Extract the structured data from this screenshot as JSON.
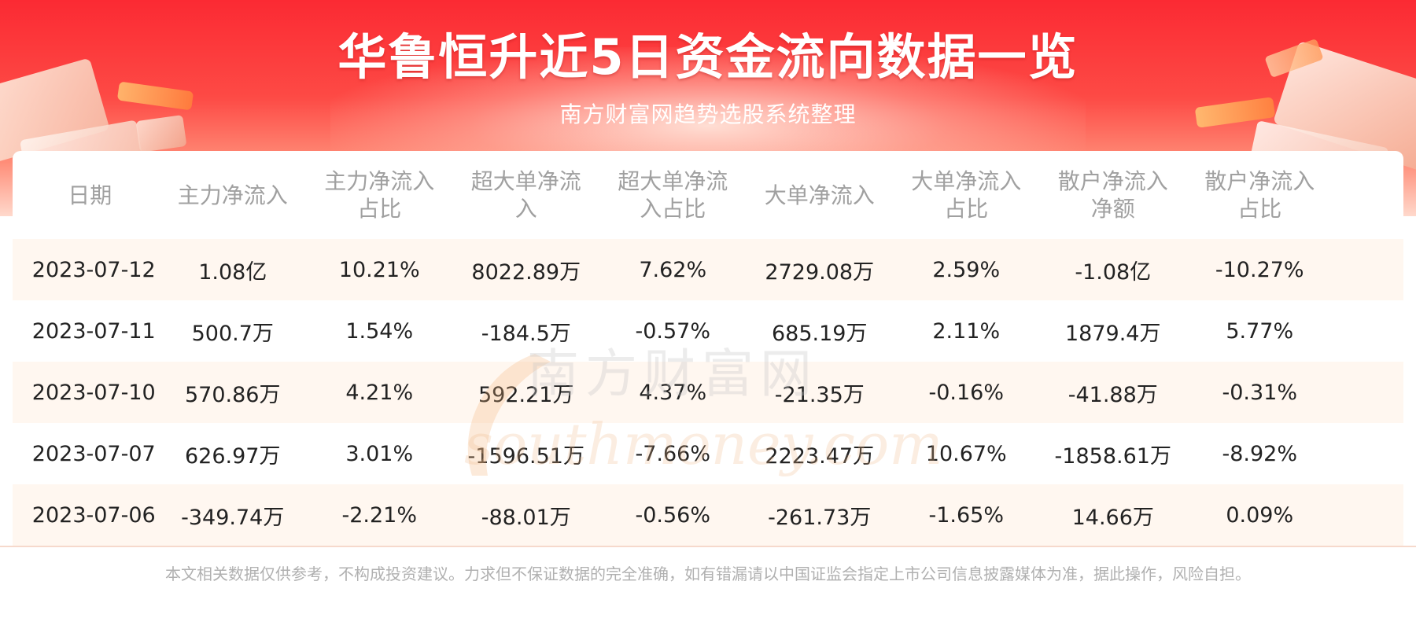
{
  "header": {
    "title": "华鲁恒升近5日资金流向数据一览",
    "subtitle": "南方财富网趋势选股系统整理"
  },
  "table": {
    "columns": [
      [
        "日期"
      ],
      [
        "主力净流入"
      ],
      [
        "主力净流入",
        "占比"
      ],
      [
        "超大单净流",
        "入"
      ],
      [
        "超大单净流",
        "入占比"
      ],
      [
        "大单净流入"
      ],
      [
        "大单净流入",
        "占比"
      ],
      [
        "散户净流入",
        "净额"
      ],
      [
        "散户净流入",
        "占比"
      ]
    ],
    "rows": [
      [
        "2023-07-12",
        "1.08亿",
        "10.21%",
        "8022.89万",
        "7.62%",
        "2729.08万",
        "2.59%",
        "-1.08亿",
        "-10.27%"
      ],
      [
        "2023-07-11",
        "500.7万",
        "1.54%",
        "-184.5万",
        "-0.57%",
        "685.19万",
        "2.11%",
        "1879.4万",
        "5.77%"
      ],
      [
        "2023-07-10",
        "570.86万",
        "4.21%",
        "592.21万",
        "4.37%",
        "-21.35万",
        "-0.16%",
        "-41.88万",
        "-0.31%"
      ],
      [
        "2023-07-07",
        "626.97万",
        "3.01%",
        "-1596.51万",
        "-7.66%",
        "2223.47万",
        "10.67%",
        "-1858.61万",
        "-8.92%"
      ],
      [
        "2023-07-06",
        "-349.74万",
        "-2.21%",
        "-88.01万",
        "-0.56%",
        "-261.73万",
        "-1.65%",
        "14.66万",
        "0.09%"
      ]
    ]
  },
  "watermark": {
    "logo_text": "南方财富网",
    "url_text": "southmoney.com"
  },
  "footer": {
    "disclaimer": "本文相关数据仅供参考，不构成投资建议。力求但不保证数据的完全准确，如有错漏请以中国证监会指定上市公司信息披露媒体为准，据此操作，风险自担。"
  },
  "colors": {
    "banner_red": "#fb2a33",
    "row_shade": "#fff7f0",
    "header_text": "#a0a0a0",
    "cell_text": "#222222"
  }
}
